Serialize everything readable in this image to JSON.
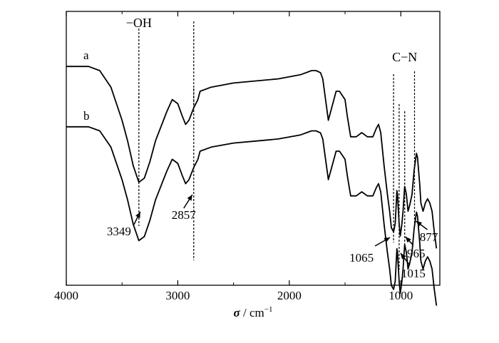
{
  "chart_data": {
    "type": "line",
    "title": "",
    "xlabel": "σ / cm⁻¹",
    "xlabel_symbol": "σ",
    "xlabel_unit": "cm",
    "xlabel_unit_exp": "−1",
    "ylabel": "",
    "xlim": [
      4000,
      650
    ],
    "x_ticks": [
      4000,
      3000,
      2000,
      1000
    ],
    "x_tick_labels": [
      "4000",
      "3000",
      "2000",
      "1000"
    ],
    "y_ticks": false,
    "grid": false,
    "series": [
      {
        "name": "a",
        "x": [
          4000,
          3800,
          3700,
          3600,
          3500,
          3450,
          3400,
          3349,
          3300,
          3250,
          3200,
          3100,
          3050,
          3000,
          2960,
          2930,
          2900,
          2857,
          2820,
          2800,
          2700,
          2500,
          2300,
          2100,
          1900,
          1800,
          1760,
          1720,
          1700,
          1650,
          1600,
          1580,
          1550,
          1500,
          1480,
          1450,
          1400,
          1350,
          1300,
          1250,
          1220,
          1200,
          1180,
          1150,
          1120,
          1100,
          1085,
          1065,
          1050,
          1035,
          1030,
          1015,
          1005,
          990,
          980,
          970,
          965,
          950,
          935,
          920,
          900,
          880,
          860,
          850,
          830,
          820,
          800,
          780,
          760,
          740,
          720,
          700,
          680
        ],
        "values": [
          0.92,
          0.92,
          0.9,
          0.82,
          0.66,
          0.56,
          0.44,
          0.36,
          0.38,
          0.46,
          0.56,
          0.7,
          0.76,
          0.74,
          0.68,
          0.64,
          0.66,
          0.72,
          0.76,
          0.8,
          0.82,
          0.84,
          0.85,
          0.86,
          0.88,
          0.9,
          0.9,
          0.89,
          0.86,
          0.66,
          0.76,
          0.8,
          0.8,
          0.76,
          0.68,
          0.58,
          0.58,
          0.6,
          0.58,
          0.58,
          0.62,
          0.64,
          0.6,
          0.44,
          0.3,
          0.22,
          0.14,
          0.12,
          0.16,
          0.32,
          0.3,
          0.16,
          0.1,
          0.16,
          0.22,
          0.3,
          0.34,
          0.3,
          0.22,
          0.25,
          0.3,
          0.42,
          0.5,
          0.48,
          0.35,
          0.26,
          0.22,
          0.26,
          0.28,
          0.26,
          0.22,
          0.12,
          0.04
        ]
      },
      {
        "name": "b",
        "x": [
          4000,
          3800,
          3700,
          3600,
          3500,
          3450,
          3400,
          3349,
          3300,
          3250,
          3200,
          3100,
          3050,
          3000,
          2960,
          2930,
          2900,
          2857,
          2820,
          2800,
          2700,
          2500,
          2300,
          2100,
          1900,
          1800,
          1760,
          1720,
          1700,
          1650,
          1600,
          1580,
          1550,
          1500,
          1480,
          1450,
          1400,
          1350,
          1300,
          1250,
          1220,
          1200,
          1180,
          1150,
          1120,
          1100,
          1085,
          1065,
          1050,
          1035,
          1030,
          1015,
          1005,
          990,
          980,
          970,
          965,
          950,
          935,
          920,
          900,
          880,
          860,
          850,
          830,
          820,
          800,
          780,
          760,
          740,
          720,
          700,
          680
        ],
        "values": [
          0.92,
          0.92,
          0.9,
          0.82,
          0.66,
          0.56,
          0.44,
          0.36,
          0.38,
          0.46,
          0.56,
          0.7,
          0.76,
          0.74,
          0.68,
          0.64,
          0.66,
          0.72,
          0.76,
          0.8,
          0.82,
          0.84,
          0.85,
          0.86,
          0.88,
          0.9,
          0.9,
          0.89,
          0.86,
          0.66,
          0.76,
          0.8,
          0.8,
          0.76,
          0.68,
          0.58,
          0.58,
          0.6,
          0.58,
          0.58,
          0.62,
          0.64,
          0.6,
          0.44,
          0.3,
          0.22,
          0.14,
          0.12,
          0.16,
          0.32,
          0.3,
          0.16,
          0.1,
          0.16,
          0.22,
          0.3,
          0.34,
          0.3,
          0.22,
          0.25,
          0.3,
          0.42,
          0.5,
          0.48,
          0.35,
          0.26,
          0.22,
          0.26,
          0.28,
          0.26,
          0.22,
          0.12,
          0.04
        ]
      }
    ],
    "annotations": {
      "group_labels": [
        {
          "text": "−OH",
          "x": 3349
        },
        {
          "text": "C−N",
          "x": 965
        }
      ],
      "reference_lines": [
        3349,
        2857,
        1065,
        1015,
        965,
        877
      ],
      "peak_labels": [
        {
          "text": "3349",
          "x": 3349
        },
        {
          "text": "2857",
          "x": 2857
        },
        {
          "text": "1065",
          "x": 1065
        },
        {
          "text": "1015",
          "x": 1015
        },
        {
          "text": "965",
          "x": 965
        },
        {
          "text": "877",
          "x": 877
        }
      ]
    }
  }
}
